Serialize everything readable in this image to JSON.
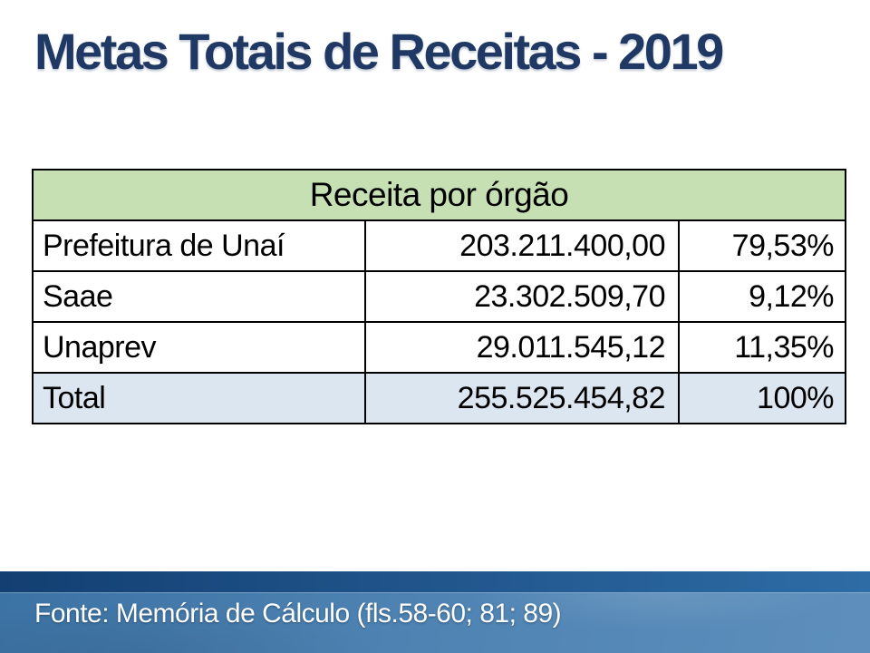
{
  "slide": {
    "title": "Metas Totais de Receitas - 2019",
    "footer_source": "Fonte: Memória de Cálculo (fls.58-60; 81; 89)"
  },
  "table": {
    "header": "Receita por órgão",
    "rows": [
      {
        "label": "Prefeitura de Unaí",
        "value": "203.211.400,00",
        "percent": "79,53%"
      },
      {
        "label": "Saae",
        "value": "23.302.509,70",
        "percent": "9,12%"
      },
      {
        "label": "Unaprev",
        "value": "29.011.545,12",
        "percent": "11,35%"
      },
      {
        "label": "Total",
        "value": "255.525.454,82",
        "percent": "100%"
      }
    ]
  },
  "colors": {
    "title_text": "#1F3864",
    "table_header_fill": "#C6E0B4",
    "total_row_fill": "#DCE6F1",
    "table_border": "#000000",
    "footer_stripe_left": "#133F72",
    "footer_stripe_right": "#2E6CA6",
    "footer_band_left": "#3C73A5",
    "footer_band_right": "#5E8FBC",
    "footer_text": "#FFFFFF"
  }
}
